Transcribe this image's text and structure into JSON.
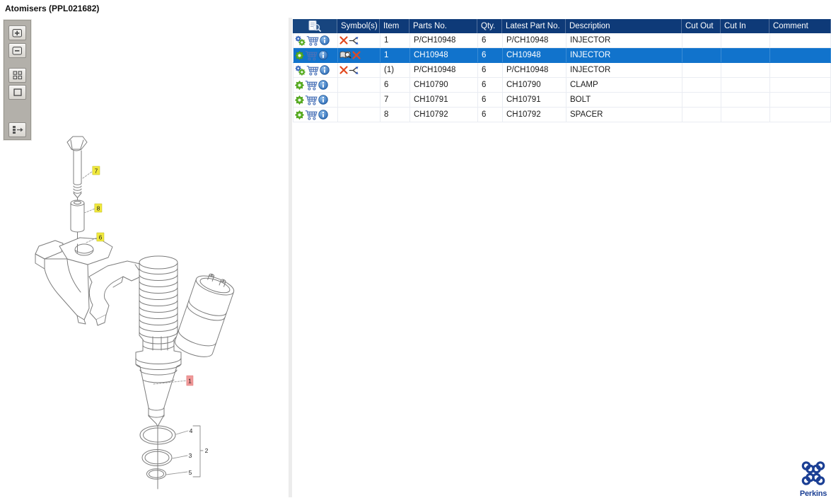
{
  "window": {
    "title": "Atomisers (PPL021682)"
  },
  "toolbar": {
    "buttons": [
      {
        "name": "zoom-in"
      },
      {
        "name": "zoom-out"
      },
      {
        "name": "tile-view"
      },
      {
        "name": "single-view"
      },
      {
        "name": "toggle-list-panel"
      }
    ]
  },
  "diagram": {
    "callouts": {
      "bolt": "7",
      "spacer": "8",
      "clamp": "6",
      "injector": "1",
      "oring_large": "4",
      "oring_mid": "3",
      "oring_small": "5",
      "seal_group": "2"
    },
    "highlight_colors": {
      "yellow": "#F0E83C",
      "red": "#F19898"
    }
  },
  "table": {
    "columns": [
      {
        "label": "",
        "key": "actions"
      },
      {
        "label": "Symbol(s)",
        "key": "symbols"
      },
      {
        "label": "Item",
        "key": "item"
      },
      {
        "label": "Parts No.",
        "key": "parts_no"
      },
      {
        "label": "Qty.",
        "key": "qty"
      },
      {
        "label": "Latest Part No.",
        "key": "latest_part_no"
      },
      {
        "label": "Description",
        "key": "description"
      },
      {
        "label": "Cut Out",
        "key": "cut_out"
      },
      {
        "label": "Cut In",
        "key": "cut_in"
      },
      {
        "label": "Comment",
        "key": "comment"
      }
    ],
    "rows": [
      {
        "icons": [
          "gear-double",
          "cart",
          "info"
        ],
        "symbols": [
          "x-remove",
          "branch-split"
        ],
        "item": "1",
        "parts_no": "P/CH10948",
        "qty": "6",
        "latest_part_no": "P/CH10948",
        "description": "INJECTOR",
        "cut_out": "",
        "cut_in": "",
        "comment": "",
        "selected": false
      },
      {
        "icons": [
          "gear",
          "cart",
          "info"
        ],
        "symbols": [
          "book-search",
          "x-remove"
        ],
        "item": "1",
        "parts_no": "CH10948",
        "qty": "6",
        "latest_part_no": "CH10948",
        "description": "INJECTOR",
        "cut_out": "",
        "cut_in": "",
        "comment": "",
        "selected": true
      },
      {
        "icons": [
          "gear-double",
          "cart",
          "info"
        ],
        "symbols": [
          "x-remove",
          "branch-split"
        ],
        "item": "(1)",
        "parts_no": "P/CH10948",
        "qty": "6",
        "latest_part_no": "P/CH10948",
        "description": "INJECTOR",
        "cut_out": "",
        "cut_in": "",
        "comment": "",
        "selected": false
      },
      {
        "icons": [
          "gear",
          "cart",
          "info"
        ],
        "symbols": [],
        "item": "6",
        "parts_no": "CH10790",
        "qty": "6",
        "latest_part_no": "CH10790",
        "description": "CLAMP",
        "cut_out": "",
        "cut_in": "",
        "comment": "",
        "selected": false
      },
      {
        "icons": [
          "gear",
          "cart",
          "info"
        ],
        "symbols": [],
        "item": "7",
        "parts_no": "CH10791",
        "qty": "6",
        "latest_part_no": "CH10791",
        "description": "BOLT",
        "cut_out": "",
        "cut_in": "",
        "comment": "",
        "selected": false
      },
      {
        "icons": [
          "gear",
          "cart",
          "info"
        ],
        "symbols": [],
        "item": "8",
        "parts_no": "CH10792",
        "qty": "6",
        "latest_part_no": "CH10792",
        "description": "SPACER",
        "cut_out": "",
        "cut_in": "",
        "comment": "",
        "selected": false
      }
    ]
  },
  "branding": {
    "logo_text": "Perkins"
  },
  "colors": {
    "header_bg": "#0E3A78",
    "selection_bg": "#1173CC",
    "grid_line": "#E9ECF2",
    "highlight_yellow": "#F0E83C",
    "highlight_red": "#F19898",
    "logo_blue": "#1B3F94",
    "gear_green": "#56AD1F",
    "gear_blue": "#2F62C1",
    "x_orange": "#E2491F",
    "cart_blue": "#4A72B8"
  }
}
